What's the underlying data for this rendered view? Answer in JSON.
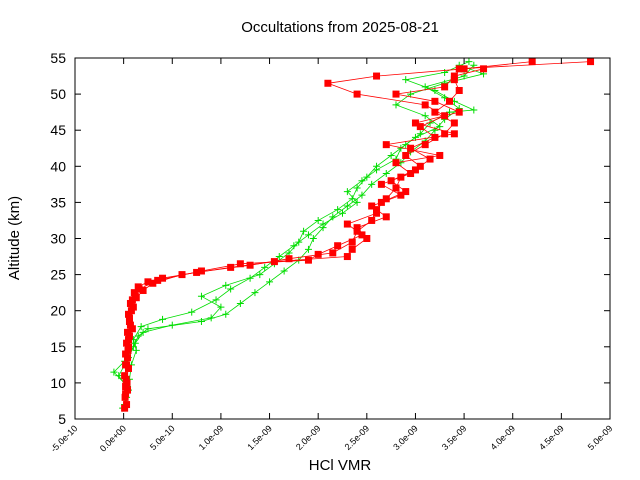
{
  "chart_data": {
    "type": "line",
    "title": "Occultations from 2025-08-21",
    "xlabel": "HCl VMR",
    "ylabel": "Altitude (km)",
    "xlim": [
      -5e-10,
      5e-09
    ],
    "ylim": [
      5,
      55
    ],
    "x_ticks": [
      "-5.0e-10",
      "0.0e+00",
      "5.0e-10",
      "1.0e-09",
      "1.5e-09",
      "2.0e-09",
      "2.5e-09",
      "3.0e-09",
      "3.5e-09",
      "4.0e-09",
      "4.5e-09",
      "5.0e-09"
    ],
    "y_ticks": [
      "5",
      "10",
      "15",
      "20",
      "25",
      "30",
      "35",
      "40",
      "45",
      "50",
      "55"
    ],
    "grid": false,
    "legend": "none",
    "colors": {
      "series_red": "#ff0000",
      "series_green": "#00dd00",
      "axis": "#000000"
    },
    "series": [
      {
        "color": "#ff0000",
        "marker": "square",
        "points": [
          [
            1e-11,
            6.5
          ],
          [
            1.5e-11,
            8.0
          ],
          [
            2e-11,
            9.5
          ],
          [
            1e-11,
            11.0
          ],
          [
            3e-11,
            12.5
          ],
          [
            2e-11,
            14.0
          ],
          [
            3e-11,
            15.5
          ],
          [
            4e-11,
            17.0
          ],
          [
            6e-11,
            18.5
          ],
          [
            8e-11,
            20.0
          ],
          [
            9e-11,
            21.5
          ],
          [
            1.1e-10,
            22.5
          ],
          [
            1.5e-10,
            23.3
          ],
          [
            2.5e-10,
            24.0
          ],
          [
            4e-10,
            24.5
          ],
          [
            7.5e-10,
            25.3
          ],
          [
            1.3e-09,
            26.3
          ],
          [
            1.7e-09,
            27.2
          ],
          [
            2.15e-09,
            28.0
          ],
          [
            2.35e-09,
            29.5
          ],
          [
            2.4e-09,
            31.0
          ],
          [
            2.55e-09,
            32.5
          ],
          [
            2.6e-09,
            34.0
          ],
          [
            2.7e-09,
            35.5
          ],
          [
            2.8e-09,
            37.0
          ],
          [
            2.85e-09,
            38.5
          ],
          [
            3.05e-09,
            40.0
          ],
          [
            2.9e-09,
            41.5
          ],
          [
            3.1e-09,
            43.0
          ],
          [
            3.3e-09,
            44.5
          ],
          [
            3.4e-09,
            46.0
          ],
          [
            3.2e-09,
            47.5
          ],
          [
            3.35e-09,
            49.0
          ],
          [
            3.45e-09,
            50.5
          ],
          [
            3.4e-09,
            52.0
          ],
          [
            3.45e-09,
            53.5
          ],
          [
            4.8e-09,
            54.5
          ]
        ]
      },
      {
        "color": "#ff0000",
        "marker": "square",
        "points": [
          [
            3e-11,
            7.0
          ],
          [
            4e-11,
            9.0
          ],
          [
            2.5e-11,
            10.5
          ],
          [
            5e-11,
            12.0
          ],
          [
            4e-11,
            13.5
          ],
          [
            5e-11,
            15.0
          ],
          [
            6e-11,
            16.5
          ],
          [
            7e-11,
            18.0
          ],
          [
            5e-11,
            19.5
          ],
          [
            7e-11,
            21.0
          ],
          [
            1.2e-10,
            22.0
          ],
          [
            1.6e-10,
            23.0
          ],
          [
            3.5e-10,
            24.2
          ],
          [
            8e-10,
            25.5
          ],
          [
            1.2e-09,
            26.5
          ],
          [
            1.9e-09,
            27.0
          ],
          [
            2e-09,
            27.8
          ],
          [
            2.2e-09,
            29.0
          ],
          [
            2.45e-09,
            30.5
          ],
          [
            2.3e-09,
            32.0
          ],
          [
            2.6e-09,
            33.5
          ],
          [
            2.65e-09,
            35.0
          ],
          [
            2.9e-09,
            36.5
          ],
          [
            2.75e-09,
            38.0
          ],
          [
            3e-09,
            39.5
          ],
          [
            3.15e-09,
            41.0
          ],
          [
            2.95e-09,
            42.5
          ],
          [
            3.2e-09,
            44.0
          ],
          [
            3.05e-09,
            45.5
          ],
          [
            3.3e-09,
            47.0
          ],
          [
            3.1e-09,
            48.5
          ],
          [
            2.4e-09,
            50.0
          ],
          [
            2.1e-09,
            51.5
          ],
          [
            2.6e-09,
            52.5
          ],
          [
            3.5e-09,
            53.5
          ],
          [
            4.2e-09,
            54.5
          ]
        ]
      },
      {
        "color": "#ff0000",
        "marker": "square",
        "points": [
          [
            2e-11,
            8.5
          ],
          [
            3.5e-11,
            10.0
          ],
          [
            2e-11,
            12.5
          ],
          [
            4.5e-11,
            14.5
          ],
          [
            5e-11,
            16.0
          ],
          [
            9e-11,
            17.5
          ],
          [
            6e-11,
            19.0
          ],
          [
            1e-10,
            20.5
          ],
          [
            1.3e-10,
            21.8
          ],
          [
            2e-10,
            22.8
          ],
          [
            3e-10,
            23.8
          ],
          [
            6e-10,
            25.0
          ],
          [
            1.1e-09,
            26.0
          ],
          [
            1.55e-09,
            26.8
          ],
          [
            2.3e-09,
            27.5
          ],
          [
            2.35e-09,
            28.5
          ],
          [
            2.5e-09,
            30.0
          ],
          [
            2.4e-09,
            31.5
          ],
          [
            2.7e-09,
            33.0
          ],
          [
            2.55e-09,
            34.5
          ],
          [
            2.85e-09,
            36.0
          ],
          [
            2.65e-09,
            37.5
          ],
          [
            2.95e-09,
            39.0
          ],
          [
            2.8e-09,
            40.5
          ],
          [
            3.25e-09,
            41.5
          ],
          [
            2.7e-09,
            43.0
          ],
          [
            3.4e-09,
            44.5
          ],
          [
            3e-09,
            46.0
          ],
          [
            3.45e-09,
            47.5
          ],
          [
            3.2e-09,
            49.0
          ],
          [
            2.8e-09,
            50.0
          ],
          [
            3.3e-09,
            51.0
          ],
          [
            3.4e-09,
            52.5
          ],
          [
            3.7e-09,
            53.5
          ]
        ]
      },
      {
        "color": "#00dd00",
        "marker": "plus",
        "points": [
          [
            -1e-11,
            6.5
          ],
          [
            3e-11,
            8.0
          ],
          [
            4e-11,
            9.5
          ],
          [
            -1e-10,
            11.5
          ],
          [
            1e-11,
            13.0
          ],
          [
            1e-10,
            15.0
          ],
          [
            1.5e-10,
            16.5
          ],
          [
            2.5e-10,
            17.5
          ],
          [
            8e-10,
            18.5
          ],
          [
            1.05e-09,
            19.5
          ],
          [
            1.2e-09,
            21.0
          ],
          [
            1.35e-09,
            22.5
          ],
          [
            1.5e-09,
            24.0
          ],
          [
            1.65e-09,
            25.5
          ],
          [
            1.8e-09,
            27.0
          ],
          [
            1.9e-09,
            28.5
          ],
          [
            1.95e-09,
            30.0
          ],
          [
            2.05e-09,
            31.5
          ],
          [
            2.15e-09,
            33.0
          ],
          [
            2.3e-09,
            34.5
          ],
          [
            2.45e-09,
            36.0
          ],
          [
            2.55e-09,
            37.5
          ],
          [
            2.7e-09,
            39.0
          ],
          [
            2.85e-09,
            40.5
          ],
          [
            2.95e-09,
            42.0
          ],
          [
            3.1e-09,
            43.5
          ],
          [
            3.2e-09,
            45.0
          ],
          [
            3.3e-09,
            46.5
          ],
          [
            3.45e-09,
            48.0
          ],
          [
            3.3e-09,
            49.5
          ],
          [
            3.1e-09,
            51.0
          ],
          [
            3.5e-09,
            52.5
          ],
          [
            3.6e-09,
            54.0
          ]
        ]
      },
      {
        "color": "#00dd00",
        "marker": "plus",
        "points": [
          [
            1e-11,
            7.0
          ],
          [
            5e-11,
            9.0
          ],
          [
            -5e-11,
            11.0
          ],
          [
            5e-11,
            13.5
          ],
          [
            1.2e-10,
            15.5
          ],
          [
            2e-10,
            17.0
          ],
          [
            5e-10,
            18.0
          ],
          [
            9e-10,
            19.0
          ],
          [
            1e-09,
            20.5
          ],
          [
            8e-10,
            22.0
          ],
          [
            1.05e-09,
            23.5
          ],
          [
            1.4e-09,
            25.0
          ],
          [
            1.55e-09,
            26.5
          ],
          [
            1.7e-09,
            28.0
          ],
          [
            1.8e-09,
            29.5
          ],
          [
            1.85e-09,
            31.0
          ],
          [
            2e-09,
            32.5
          ],
          [
            2.2e-09,
            34.0
          ],
          [
            2.35e-09,
            35.5
          ],
          [
            2.4e-09,
            37.0
          ],
          [
            2.5e-09,
            38.5
          ],
          [
            2.6e-09,
            40.0
          ],
          [
            2.75e-09,
            41.5
          ],
          [
            2.9e-09,
            43.0
          ],
          [
            3.05e-09,
            44.5
          ],
          [
            3.15e-09,
            46.0
          ],
          [
            3.35e-09,
            47.5
          ],
          [
            3.6e-09,
            47.8
          ],
          [
            3.4e-09,
            49.0
          ],
          [
            3.2e-09,
            50.5
          ],
          [
            2.9e-09,
            52.0
          ],
          [
            3.3e-09,
            53.0
          ],
          [
            3.55e-09,
            54.5
          ]
        ]
      },
      {
        "color": "#00dd00",
        "marker": "plus",
        "points": [
          [
            2e-11,
            8.5
          ],
          [
            6e-11,
            10.5
          ],
          [
            8e-11,
            12.5
          ],
          [
            1.3e-10,
            14.5
          ],
          [
            1e-10,
            16.0
          ],
          [
            1.8e-10,
            17.8
          ],
          [
            4e-10,
            18.8
          ],
          [
            7e-10,
            19.8
          ],
          [
            9.5e-10,
            21.5
          ],
          [
            1.1e-09,
            23.0
          ],
          [
            1.3e-09,
            24.5
          ],
          [
            1.45e-09,
            26.0
          ],
          [
            1.6e-09,
            27.5
          ],
          [
            1.75e-09,
            29.0
          ],
          [
            1.9e-09,
            30.5
          ],
          [
            2.05e-09,
            32.0
          ],
          [
            2.25e-09,
            33.5
          ],
          [
            2.4e-09,
            35.0
          ],
          [
            2.3e-09,
            36.5
          ],
          [
            2.45e-09,
            38.0
          ],
          [
            2.6e-09,
            39.5
          ],
          [
            2.8e-09,
            41.0
          ],
          [
            2.85e-09,
            42.5
          ],
          [
            3e-09,
            44.0
          ],
          [
            3.25e-09,
            45.5
          ],
          [
            3.1e-09,
            47.0
          ],
          [
            2.8e-09,
            48.5
          ],
          [
            2.95e-09,
            50.0
          ],
          [
            3.3e-09,
            51.5
          ],
          [
            3.7e-09,
            52.8
          ],
          [
            3.45e-09,
            54.0
          ]
        ]
      }
    ]
  }
}
